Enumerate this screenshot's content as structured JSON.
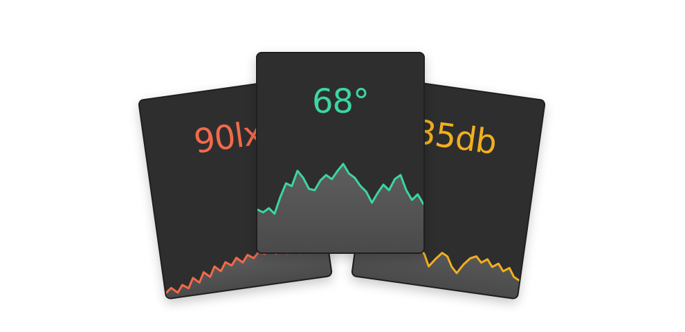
{
  "cards": [
    {
      "id": "light",
      "value": "90lx",
      "color": "#f26a4b",
      "series": [
        8,
        14,
        6,
        16,
        10,
        24,
        16,
        30,
        22,
        36,
        28,
        40,
        34,
        44,
        36,
        46,
        40,
        48,
        44,
        50,
        42,
        48,
        40,
        46,
        38,
        44,
        36,
        42,
        34,
        40
      ]
    },
    {
      "id": "temperature",
      "value": "68°",
      "color": "#3cd6a3",
      "series": [
        62,
        58,
        64,
        56,
        80,
        100,
        96,
        118,
        108,
        92,
        90,
        104,
        112,
        106,
        118,
        128,
        114,
        108,
        96,
        88,
        72,
        86,
        98,
        90,
        106,
        112,
        90,
        76,
        84,
        70
      ]
    },
    {
      "id": "sound",
      "value": "35db",
      "color": "#f2b01e",
      "series": [
        40,
        52,
        60,
        56,
        64,
        70,
        62,
        74,
        60,
        58,
        48,
        54,
        44,
        28,
        40,
        50,
        46,
        32,
        24,
        38,
        48,
        52,
        44,
        50,
        40,
        46,
        36,
        42,
        30,
        26
      ]
    }
  ]
}
